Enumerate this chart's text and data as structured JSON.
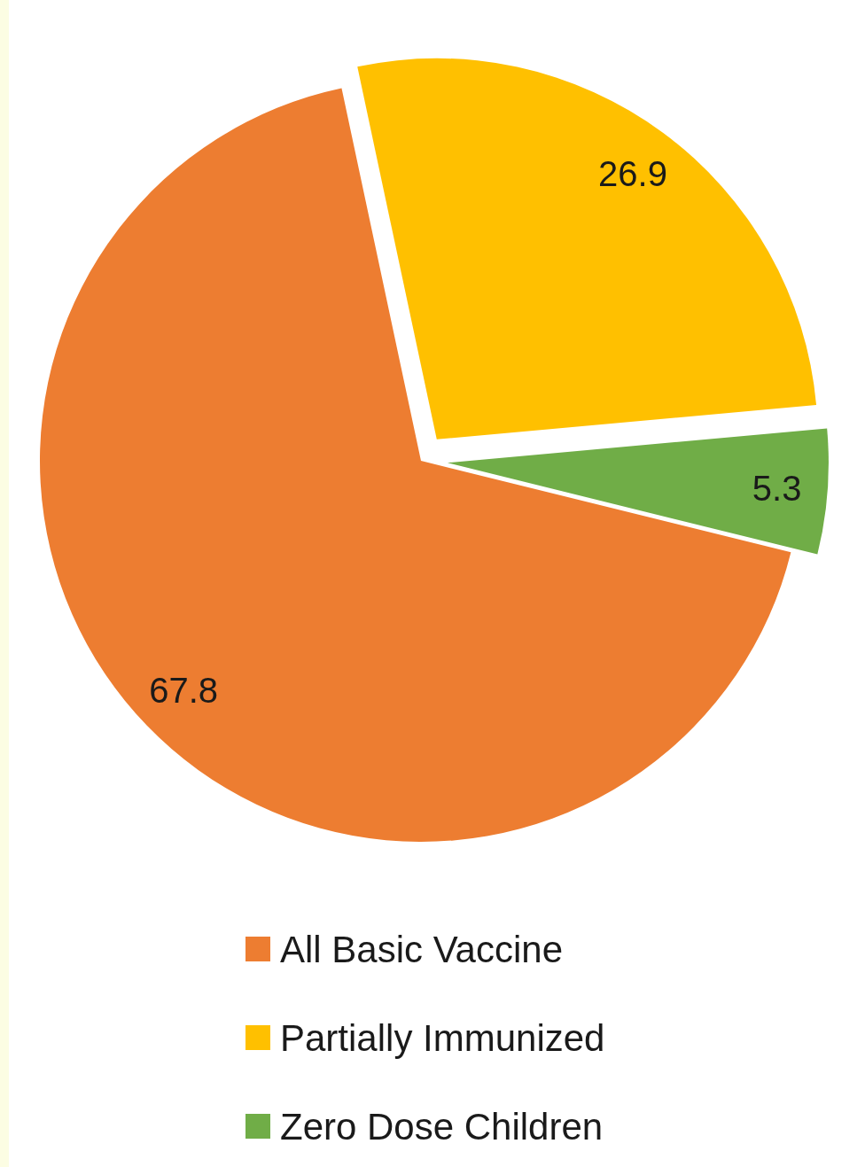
{
  "chart_data": {
    "type": "pie",
    "categories": [
      "All Basic Vaccine",
      "Partially Immunized",
      "Zero Dose Children"
    ],
    "values": [
      67.8,
      26.9,
      5.3
    ],
    "colors": [
      "#ed7d31",
      "#ffc000",
      "#70ad47"
    ],
    "data_labels": true,
    "legend": "bottom"
  }
}
